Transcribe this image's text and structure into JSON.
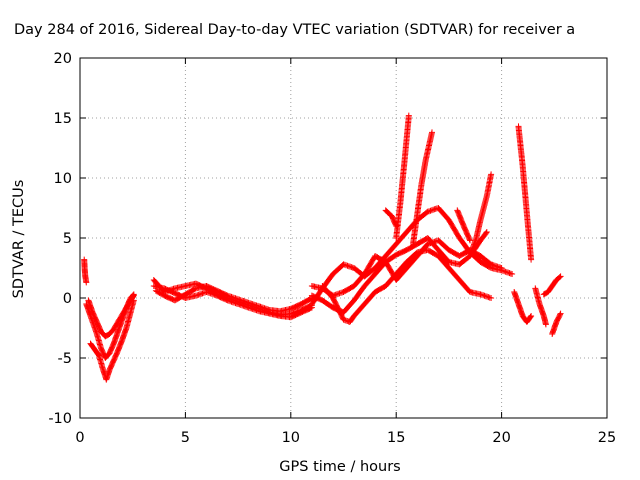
{
  "chart_data": {
    "type": "scatter",
    "title": "Day 284 of 2016, Sidereal Day-to-day VTEC variation (SDTVAR) for receiver a",
    "xlabel": "GPS time / hours",
    "ylabel": "SDTVAR / TECUs",
    "xlim": [
      0,
      25
    ],
    "ylim": [
      -10,
      20
    ],
    "xticks": [
      "0",
      "5",
      "10",
      "15",
      "20",
      "25"
    ],
    "yticks": [
      "-10",
      "-5",
      "0",
      "5",
      "10",
      "15",
      "20"
    ],
    "grid": true,
    "marker": "+",
    "color": "#ff0000",
    "series": [
      {
        "tracks": [
          [
            [
              0.2,
              3.2
            ],
            [
              0.22,
              2.5
            ],
            [
              0.25,
              1.8
            ],
            [
              0.3,
              1.3
            ]
          ],
          [
            [
              0.3,
              -0.5
            ],
            [
              0.5,
              -1.5
            ],
            [
              0.8,
              -3.0
            ],
            [
              1.0,
              -4.2
            ],
            [
              1.2,
              -5.0
            ],
            [
              1.4,
              -4.6
            ],
            [
              1.6,
              -3.8
            ],
            [
              1.8,
              -2.8
            ],
            [
              2.0,
              -1.8
            ],
            [
              2.2,
              -0.8
            ],
            [
              2.4,
              0.0
            ],
            [
              2.55,
              0.3
            ]
          ],
          [
            [
              0.4,
              -0.2
            ],
            [
              0.6,
              -1.2
            ],
            [
              0.8,
              -2.0
            ],
            [
              1.0,
              -2.8
            ],
            [
              1.2,
              -3.2
            ],
            [
              1.4,
              -3.0
            ],
            [
              1.6,
              -2.6
            ],
            [
              1.8,
              -2.0
            ],
            [
              2.0,
              -1.4
            ],
            [
              2.2,
              -0.8
            ],
            [
              2.4,
              -0.2
            ],
            [
              2.55,
              0.2
            ]
          ],
          [
            [
              0.5,
              -3.8
            ],
            [
              0.7,
              -4.3
            ],
            [
              0.9,
              -4.8
            ],
            [
              1.1,
              -6.0
            ],
            [
              1.25,
              -6.8
            ],
            [
              1.4,
              -6.0
            ],
            [
              1.6,
              -5.2
            ],
            [
              1.8,
              -4.4
            ],
            [
              2.0,
              -3.5
            ],
            [
              2.2,
              -2.5
            ],
            [
              2.4,
              -1.2
            ],
            [
              2.55,
              -0.2
            ]
          ]
        ]
      },
      {
        "tracks": [
          [
            [
              3.5,
              1.5
            ],
            [
              4.0,
              0.5
            ],
            [
              4.5,
              0.8
            ],
            [
              5.0,
              1.0
            ],
            [
              5.5,
              1.2
            ],
            [
              6.0,
              0.8
            ],
            [
              6.5,
              0.3
            ],
            [
              7.0,
              0.0
            ],
            [
              7.5,
              -0.3
            ],
            [
              8.0,
              -0.6
            ],
            [
              8.5,
              -0.9
            ],
            [
              9.0,
              -1.2
            ],
            [
              9.5,
              -1.4
            ],
            [
              10.0,
              -1.3
            ],
            [
              10.5,
              -1.0
            ],
            [
              11.0,
              -0.6
            ]
          ],
          [
            [
              3.5,
              1.0
            ],
            [
              4.0,
              0.8
            ],
            [
              4.5,
              0.4
            ],
            [
              5.0,
              0.0
            ],
            [
              5.5,
              0.2
            ],
            [
              6.0,
              0.5
            ],
            [
              6.5,
              0.2
            ],
            [
              7.0,
              -0.2
            ],
            [
              7.5,
              -0.5
            ],
            [
              8.0,
              -0.8
            ],
            [
              8.5,
              -1.1
            ],
            [
              9.0,
              -1.3
            ],
            [
              9.5,
              -1.5
            ],
            [
              10.0,
              -1.6
            ],
            [
              10.5,
              -1.2
            ],
            [
              11.0,
              -0.8
            ]
          ],
          [
            [
              3.6,
              0.6
            ],
            [
              4.0,
              0.2
            ],
            [
              4.5,
              -0.2
            ],
            [
              5.0,
              0.3
            ],
            [
              5.5,
              0.8
            ],
            [
              6.0,
              1.0
            ],
            [
              6.5,
              0.6
            ],
            [
              7.0,
              0.2
            ],
            [
              7.5,
              -0.1
            ],
            [
              8.0,
              -0.4
            ],
            [
              8.5,
              -0.7
            ],
            [
              9.0,
              -1.0
            ],
            [
              9.5,
              -1.1
            ],
            [
              10.0,
              -0.9
            ],
            [
              10.5,
              -0.5
            ],
            [
              11.0,
              0.0
            ]
          ]
        ]
      },
      {
        "tracks": [
          [
            [
              11.0,
              -0.5
            ],
            [
              11.5,
              0.8
            ],
            [
              12.0,
              2.0
            ],
            [
              12.5,
              2.8
            ],
            [
              13.0,
              2.5
            ],
            [
              13.5,
              1.8
            ],
            [
              14.0,
              2.5
            ],
            [
              14.5,
              3.5
            ],
            [
              15.0,
              4.5
            ],
            [
              15.5,
              5.5
            ],
            [
              16.0,
              6.5
            ],
            [
              16.5,
              7.2
            ],
            [
              17.0,
              7.5
            ],
            [
              17.5,
              6.5
            ],
            [
              18.0,
              5.0
            ],
            [
              18.5,
              3.8
            ],
            [
              19.0,
              3.0
            ],
            [
              19.5,
              2.5
            ],
            [
              20.0,
              2.3
            ],
            [
              20.5,
              2.0
            ]
          ],
          [
            [
              11.0,
              0.2
            ],
            [
              11.5,
              -0.2
            ],
            [
              12.0,
              -0.8
            ],
            [
              12.5,
              -1.2
            ],
            [
              13.0,
              -0.2
            ],
            [
              13.5,
              1.0
            ],
            [
              14.0,
              2.0
            ],
            [
              14.5,
              3.0
            ],
            [
              15.0,
              3.6
            ],
            [
              15.5,
              4.0
            ],
            [
              16.0,
              4.5
            ],
            [
              16.5,
              5.0
            ],
            [
              17.0,
              4.0
            ],
            [
              17.5,
              3.0
            ],
            [
              18.0,
              2.8
            ],
            [
              18.5,
              3.5
            ],
            [
              19.0,
              4.8
            ],
            [
              19.3,
              5.5
            ]
          ],
          [
            [
              11.5,
              1.0
            ],
            [
              12.0,
              0.0
            ],
            [
              12.5,
              -1.8
            ],
            [
              12.8,
              -2.0
            ],
            [
              13.0,
              -1.5
            ],
            [
              13.5,
              -0.5
            ],
            [
              14.0,
              0.5
            ],
            [
              14.5,
              1.0
            ],
            [
              15.0,
              2.0
            ],
            [
              15.5,
              3.0
            ],
            [
              16.0,
              3.8
            ],
            [
              16.5,
              4.0
            ],
            [
              17.0,
              3.5
            ],
            [
              17.5,
              2.5
            ],
            [
              18.0,
              1.5
            ],
            [
              18.5,
              0.5
            ],
            [
              19.0,
              0.3
            ],
            [
              19.5,
              0.0
            ]
          ],
          [
            [
              11.0,
              1.0
            ],
            [
              11.5,
              0.8
            ],
            [
              12.0,
              0.2
            ],
            [
              12.5,
              0.5
            ],
            [
              13.0,
              1.0
            ],
            [
              13.5,
              2.0
            ],
            [
              14.0,
              3.5
            ],
            [
              14.5,
              3.0
            ],
            [
              15.0,
              1.5
            ],
            [
              15.5,
              2.5
            ],
            [
              16.0,
              3.5
            ],
            [
              16.5,
              4.5
            ],
            [
              17.0,
              4.8
            ],
            [
              17.5,
              4.0
            ],
            [
              18.0,
              3.5
            ],
            [
              18.5,
              4.0
            ],
            [
              19.0,
              3.5
            ],
            [
              19.5,
              2.8
            ],
            [
              20.0,
              2.5
            ]
          ]
        ]
      },
      {
        "tracks": [
          [
            [
              15.0,
              5.0
            ],
            [
              15.2,
              8.0
            ],
            [
              15.4,
              11.5
            ],
            [
              15.6,
              15.2
            ]
          ],
          [
            [
              15.8,
              4.5
            ],
            [
              16.0,
              7.0
            ],
            [
              16.2,
              9.5
            ],
            [
              16.4,
              11.5
            ],
            [
              16.7,
              13.8
            ]
          ],
          [
            [
              18.5,
              3.5
            ],
            [
              18.8,
              5.0
            ],
            [
              19.0,
              6.5
            ],
            [
              19.3,
              8.5
            ],
            [
              19.5,
              10.3
            ]
          ],
          [
            [
              20.8,
              14.3
            ],
            [
              21.0,
              11.0
            ],
            [
              21.2,
              7.0
            ],
            [
              21.4,
              3.2
            ]
          ],
          [
            [
              20.6,
              0.5
            ],
            [
              20.8,
              -0.5
            ],
            [
              21.0,
              -1.5
            ],
            [
              21.2,
              -2.0
            ],
            [
              21.4,
              -1.5
            ]
          ],
          [
            [
              21.6,
              0.8
            ],
            [
              21.8,
              -0.5
            ],
            [
              22.0,
              -1.5
            ],
            [
              22.1,
              -2.2
            ]
          ],
          [
            [
              22.0,
              0.3
            ],
            [
              22.2,
              0.5
            ],
            [
              22.4,
              1.0
            ],
            [
              22.6,
              1.5
            ],
            [
              22.8,
              1.8
            ]
          ],
          [
            [
              22.4,
              -3.0
            ],
            [
              22.6,
              -2.0
            ],
            [
              22.8,
              -1.3
            ]
          ],
          [
            [
              14.5,
              7.3
            ],
            [
              14.8,
              6.8
            ],
            [
              15.0,
              6.0
            ]
          ],
          [
            [
              17.9,
              7.3
            ],
            [
              18.2,
              6.0
            ],
            [
              18.5,
              4.8
            ]
          ]
        ]
      }
    ]
  }
}
